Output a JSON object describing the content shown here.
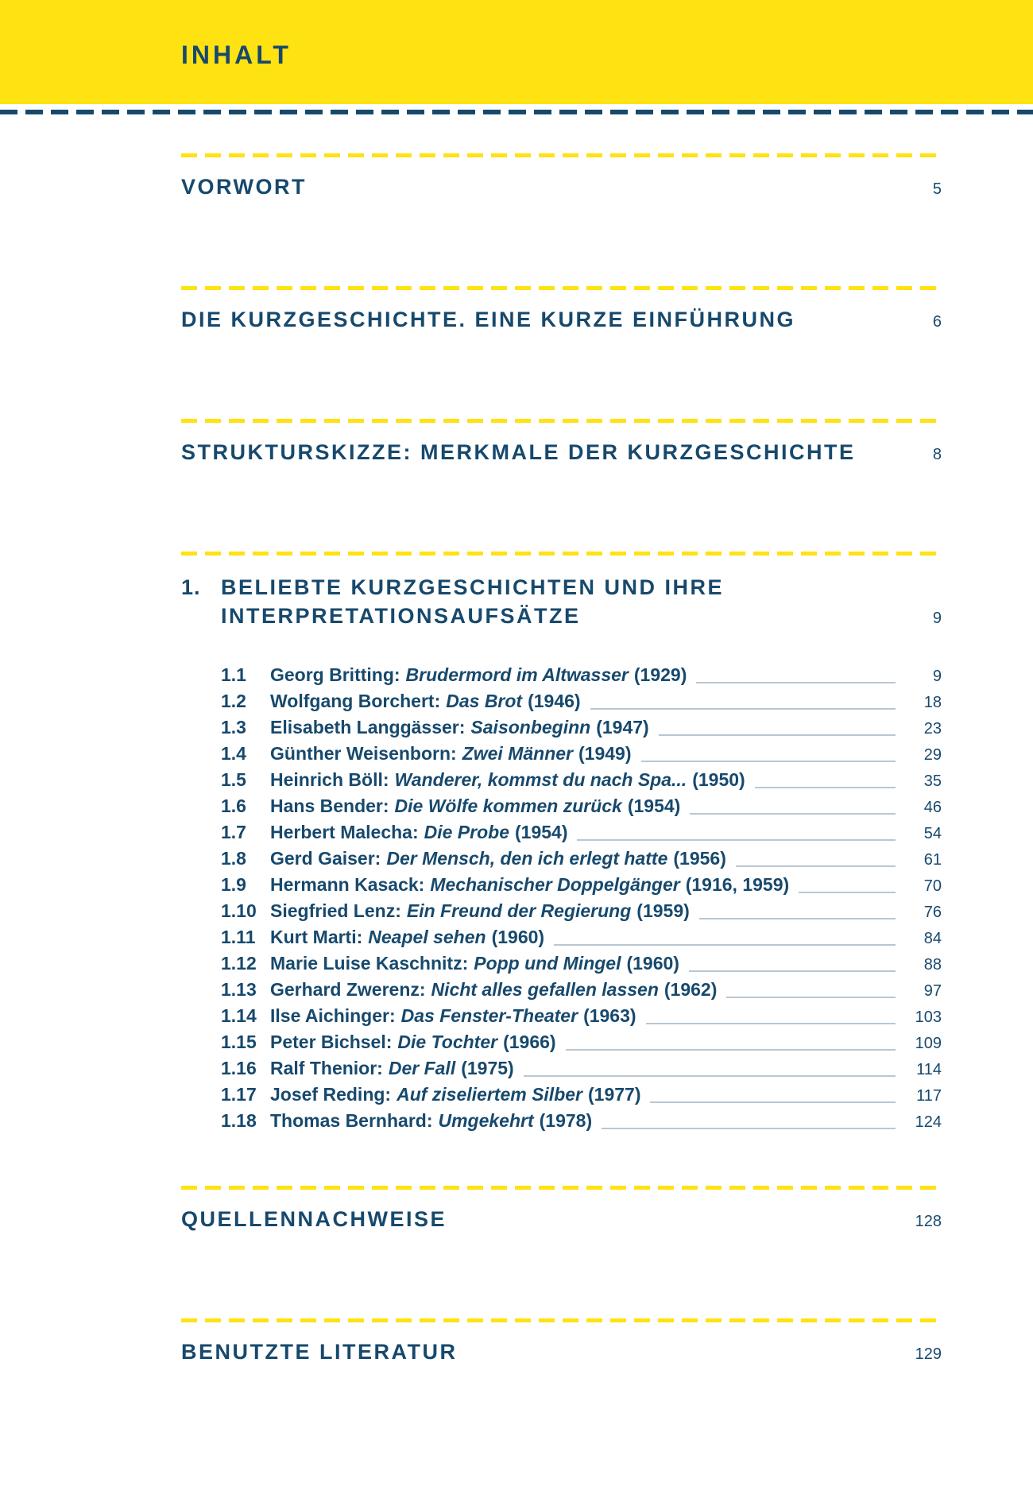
{
  "page": {
    "title": "INHALT"
  },
  "colors": {
    "band_yellow": "#FFE212",
    "text_navy": "#17496D",
    "leader_line": "#B9C7D2"
  },
  "sections": [
    {
      "title": "VORWORT",
      "page": "5"
    },
    {
      "title": "DIE KURZGESCHICHTE. EINE KURZE EINFÜHRUNG",
      "page": "6"
    },
    {
      "title": "STRUKTURSKIZZE: MERKMALE DER KURZGESCHICHTE",
      "page": "8"
    },
    {
      "title": "QUELLENNACHWEISE",
      "page": "128"
    },
    {
      "title": "BENUTZTE LITERATUR",
      "page": "129"
    }
  ],
  "chapter": {
    "number": "1.",
    "title_line1": "BELIEBTE KURZGESCHICHTEN UND IHRE",
    "title_line2": "INTERPRETATIONSAUFSÄTZE",
    "page": "9",
    "entries": [
      {
        "num": "1.1",
        "author": "Georg Britting:",
        "title": "Brudermord im Altwasser",
        "year": "(1929)",
        "page": "9"
      },
      {
        "num": "1.2",
        "author": "Wolfgang Borchert:",
        "title": "Das Brot",
        "year": "(1946)",
        "page": "18"
      },
      {
        "num": "1.3",
        "author": "Elisabeth Langgässer:",
        "title": "Saisonbeginn",
        "year": "(1947)",
        "page": "23"
      },
      {
        "num": "1.4",
        "author": "Günther Weisenborn:",
        "title": "Zwei Männer",
        "year": "(1949)",
        "page": "29"
      },
      {
        "num": "1.5",
        "author": "Heinrich Böll:",
        "title": "Wanderer, kommst du nach Spa...",
        "year": "(1950)",
        "page": "35"
      },
      {
        "num": "1.6",
        "author": "Hans Bender:",
        "title": "Die Wölfe kommen zurück",
        "year": "(1954)",
        "page": "46"
      },
      {
        "num": "1.7",
        "author": "Herbert Malecha:",
        "title": "Die Probe",
        "year": "(1954)",
        "page": "54"
      },
      {
        "num": "1.8",
        "author": "Gerd Gaiser:",
        "title": "Der Mensch, den ich erlegt hatte",
        "year": "(1956)",
        "page": "61"
      },
      {
        "num": "1.9",
        "author": "Hermann Kasack:",
        "title": "Mechanischer Doppelgänger",
        "year": "(1916, 1959)",
        "page": "70"
      },
      {
        "num": "1.10",
        "author": "Siegfried Lenz:",
        "title": "Ein Freund der Regierung",
        "year": "(1959)",
        "page": "76"
      },
      {
        "num": "1.11",
        "author": "Kurt Marti:",
        "title": "Neapel sehen",
        "year": "(1960)",
        "page": "84"
      },
      {
        "num": "1.12",
        "author": "Marie Luise Kaschnitz:",
        "title": "Popp und Mingel",
        "year": "(1960)",
        "page": "88"
      },
      {
        "num": "1.13",
        "author": "Gerhard Zwerenz:",
        "title": "Nicht alles gefallen lassen",
        "year": "(1962)",
        "page": "97"
      },
      {
        "num": "1.14",
        "author": "Ilse Aichinger:",
        "title": "Das Fenster-Theater",
        "year": "(1963)",
        "page": "103"
      },
      {
        "num": "1.15",
        "author": "Peter Bichsel:",
        "title": "Die Tochter",
        "year": "(1966)",
        "page": "109"
      },
      {
        "num": "1.16",
        "author": "Ralf Thenior:",
        "title": "Der Fall",
        "year": "(1975)",
        "page": "114"
      },
      {
        "num": "1.17",
        "author": "Josef Reding:",
        "title": "Auf ziseliertem Silber",
        "year": "(1977)",
        "page": "117"
      },
      {
        "num": "1.18",
        "author": "Thomas Bernhard:",
        "title": "Umgekehrt",
        "year": "(1978)",
        "page": "124"
      }
    ]
  }
}
